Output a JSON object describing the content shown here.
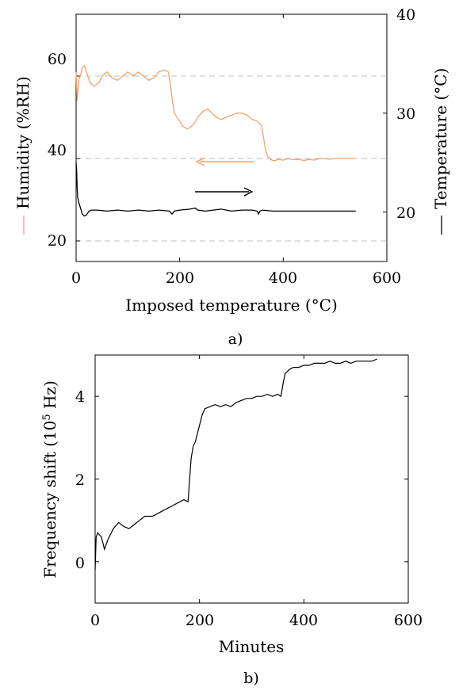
{
  "chart_data": [
    {
      "type": "line",
      "panel_caption": "a)",
      "xlabel": "Imposed temperature (°C)",
      "ylabel_left": "Humidity (%RH)",
      "ylabel_right": "Temperature (°C)",
      "xlim": [
        0,
        600
      ],
      "ylim_left": [
        15,
        75
      ],
      "ylim_right": [
        15,
        40
      ],
      "x_ticks": [
        "0",
        "200",
        "400",
        "600"
      ],
      "y_left_ticks": [
        "20",
        "40",
        "60"
      ],
      "y_right_ticks": [
        "20",
        "30",
        "40"
      ],
      "grid": "dashed horizontal lines at left-axis 20, 40, 60",
      "colors": {
        "humidity": "#F4A26B",
        "temperature": "#000000"
      },
      "series": [
        {
          "axis": "left",
          "x": [
            0,
            2,
            5,
            8,
            12,
            16,
            20,
            25,
            30,
            35,
            40,
            45,
            50,
            55,
            60,
            70,
            80,
            90,
            100,
            110,
            120,
            130,
            140,
            150,
            160,
            170,
            178,
            182,
            186,
            190,
            195,
            200,
            205,
            210,
            215,
            220,
            228,
            235,
            245,
            255,
            262,
            270,
            280,
            290,
            300,
            310,
            320,
            330,
            340,
            350,
            358,
            362,
            366,
            370,
            375,
            380,
            385,
            390,
            400,
            410,
            420,
            430,
            440,
            450,
            460,
            470,
            480,
            490,
            500,
            510,
            520,
            530,
            540
          ],
          "y": [
            61,
            54,
            59,
            60,
            62,
            62.5,
            61,
            59,
            58,
            57.5,
            58,
            58.5,
            60,
            60.5,
            61,
            59.5,
            59,
            60,
            61,
            60,
            61,
            60,
            59,
            59.5,
            61,
            61.5,
            61,
            58,
            54,
            51,
            50,
            49,
            48,
            47.5,
            47.2,
            47.5,
            48.5,
            50,
            51.5,
            52,
            51,
            50,
            49.5,
            50,
            50.5,
            51,
            51,
            50.5,
            49.5,
            49,
            48,
            45,
            42,
            40.5,
            39.8,
            39.5,
            39.5,
            39.8,
            39.6,
            40,
            39.7,
            39.8,
            39.5,
            39.8,
            39.6,
            40,
            40,
            39.8,
            40,
            40,
            40,
            40,
            40
          ]
        },
        {
          "axis": "right",
          "x": [
            0,
            1,
            2,
            3,
            5,
            8,
            12,
            16,
            20,
            25,
            30,
            40,
            60,
            80,
            100,
            120,
            140,
            160,
            180,
            185,
            190,
            200,
            220,
            230,
            235,
            250,
            280,
            300,
            320,
            340,
            350,
            352,
            355,
            360,
            380,
            400,
            420,
            440,
            460,
            500,
            540
          ],
          "y": [
            25,
            24.2,
            22.5,
            21.5,
            21,
            20.5,
            19.8,
            19.6,
            19.7,
            20.1,
            20.2,
            20.2,
            20.1,
            20.2,
            20.1,
            20.2,
            20.1,
            20.2,
            20.1,
            19.8,
            20.1,
            20.2,
            20.3,
            20.4,
            20.2,
            20.1,
            20.3,
            20.1,
            20.2,
            20.2,
            20.1,
            19.8,
            20.1,
            20.2,
            20.1,
            20.1,
            20.1,
            20.1,
            20.1,
            20.1,
            20.1
          ]
        }
      ]
    },
    {
      "type": "line",
      "panel_caption": "b)",
      "xlabel": "Minutes",
      "ylabel": "Frequency shift (10",
      "ylabel_sup": "5",
      "ylabel_tail": " Hz)",
      "xlim": [
        0,
        600
      ],
      "ylim": [
        -1,
        5
      ],
      "x_ticks": [
        "0",
        "200",
        "400",
        "600"
      ],
      "y_ticks": [
        "0",
        "2",
        "4"
      ],
      "colors": {
        "line": "#000000"
      },
      "series": [
        {
          "x": [
            0,
            2,
            5,
            8,
            12,
            18,
            25,
            35,
            45,
            55,
            65,
            75,
            85,
            95,
            110,
            125,
            140,
            155,
            170,
            178,
            181,
            184,
            188,
            192,
            196,
            200,
            205,
            210,
            220,
            230,
            240,
            250,
            260,
            270,
            280,
            290,
            300,
            310,
            320,
            330,
            340,
            350,
            356,
            360,
            364,
            368,
            372,
            380,
            390,
            400,
            410,
            420,
            430,
            440,
            450,
            460,
            470,
            480,
            490,
            500,
            510,
            520,
            530,
            540
          ],
          "y": [
            -0.2,
            0.6,
            0.7,
            0.65,
            0.6,
            0.3,
            0.55,
            0.8,
            0.95,
            0.85,
            0.8,
            0.9,
            1.0,
            1.1,
            1.1,
            1.2,
            1.3,
            1.4,
            1.5,
            1.45,
            2.0,
            2.5,
            2.8,
            2.9,
            3.1,
            3.3,
            3.55,
            3.7,
            3.75,
            3.8,
            3.75,
            3.8,
            3.75,
            3.85,
            3.9,
            3.95,
            3.95,
            4.0,
            4.0,
            4.05,
            4.0,
            4.05,
            4.0,
            4.3,
            4.55,
            4.6,
            4.65,
            4.7,
            4.7,
            4.75,
            4.75,
            4.8,
            4.8,
            4.8,
            4.85,
            4.8,
            4.8,
            4.85,
            4.8,
            4.85,
            4.85,
            4.85,
            4.85,
            4.9
          ]
        }
      ]
    }
  ]
}
